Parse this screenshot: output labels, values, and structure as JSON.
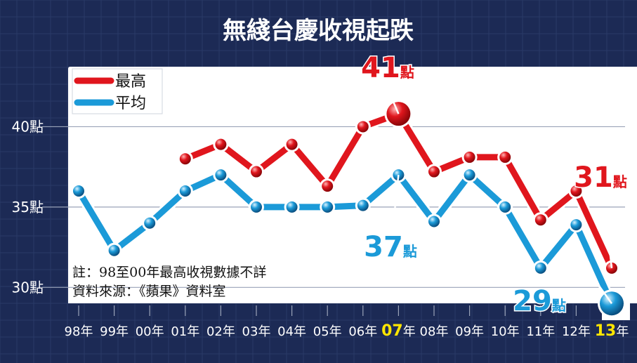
{
  "chart_data": {
    "type": "line",
    "title": "無綫台慶收視起跌",
    "x": [
      "98年",
      "99年",
      "00年",
      "01年",
      "02年",
      "03年",
      "04年",
      "05年",
      "06年",
      "07年",
      "08年",
      "09年",
      "10年",
      "11年",
      "12年",
      "13年"
    ],
    "x_highlight": [
      "07年",
      "13年"
    ],
    "ylim": [
      27,
      45
    ],
    "y_ticks": [
      30,
      35,
      40
    ],
    "y_tick_labels": [
      "30點",
      "35點",
      "40點"
    ],
    "grid": true,
    "legend_position": "top-left",
    "series": [
      {
        "name": "最高",
        "color": "#e0161d",
        "values": [
          null,
          null,
          null,
          38,
          38.9,
          37.2,
          38.9,
          36.3,
          40,
          40.8,
          37.2,
          38.1,
          38.1,
          34.2,
          36,
          31.2
        ]
      },
      {
        "name": "平均",
        "color": "#1b9ad8",
        "values": [
          36,
          32.3,
          34,
          36,
          37,
          35,
          35,
          35,
          35.1,
          37,
          34.1,
          37,
          35,
          31.2,
          33.9,
          29
        ]
      }
    ],
    "annotations": [
      {
        "text": "41點",
        "color": "#e0161d"
      },
      {
        "text": "37點",
        "color": "#1b9ad8"
      },
      {
        "text": "31點",
        "color": "#e0161d"
      },
      {
        "text": "29點",
        "color": "#1b9ad8"
      }
    ],
    "note_lines": [
      "註：98至00年最高收視數據不詳",
      "資料來源：《蘋果》資料室"
    ]
  },
  "colors": {
    "background": "#1c2a55",
    "plot_panel": "#ffffff",
    "grid": "#9aa3b8",
    "highlight_label": "#ffe600"
  }
}
